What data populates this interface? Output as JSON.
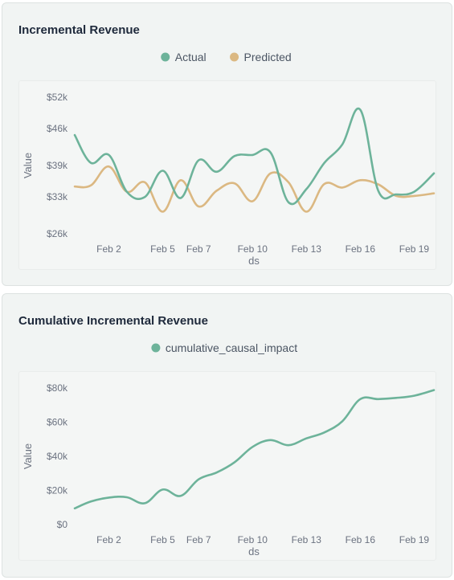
{
  "colors": {
    "actual": "#6db39a",
    "predicted": "#dbb882",
    "axis_text": "#6b7280",
    "card_bg": "#f1f4f3"
  },
  "charts": [
    {
      "card_title": "Incremental Revenue",
      "chart_data": {
        "type": "line",
        "xlabel": "ds",
        "ylabel": "Value",
        "x_ticks": [
          "Feb 2",
          "Feb 5",
          "Feb 7",
          "Feb 10",
          "Feb 13",
          "Feb 16",
          "Feb 19"
        ],
        "x_tick_days": [
          2,
          5,
          7,
          10,
          13,
          16,
          19
        ],
        "y_ticks": [
          "$26k",
          "$33k",
          "$39k",
          "$46k",
          "$52k"
        ],
        "y_tick_values": [
          26000,
          33000,
          39000,
          46000,
          52000
        ],
        "ylim": [
          24500,
          52000
        ],
        "xlim": [
          0.1,
          20.1
        ],
        "legend_position": "top-center",
        "series": [
          {
            "name": "Actual",
            "color": "#6db39a",
            "x": [
              0.1,
              1.0,
              2.0,
              3.0,
              4.0,
              5.0,
              6.0,
              7.0,
              8.0,
              9.0,
              10.0,
              11.0,
              12.0,
              13.0,
              14.0,
              15.0,
              16.0,
              17.0,
              18.0,
              19.0,
              20.1
            ],
            "y": [
              44800,
              39500,
              41000,
              34000,
              33000,
              38000,
              32800,
              40000,
              37800,
              40800,
              41000,
              41500,
              32000,
              34500,
              39500,
              43000,
              49600,
              34200,
              33500,
              34000,
              37500
            ]
          },
          {
            "name": "Predicted",
            "color": "#dbb882",
            "x": [
              0.1,
              1.0,
              2.0,
              3.0,
              4.0,
              5.0,
              6.0,
              7.0,
              8.0,
              9.0,
              10.0,
              11.0,
              12.0,
              13.0,
              14.0,
              15.0,
              16.0,
              17.0,
              18.0,
              19.0,
              20.1
            ],
            "y": [
              35000,
              35200,
              38800,
              34000,
              35800,
              30200,
              36200,
              31200,
              34200,
              35600,
              32200,
              37500,
              35800,
              30200,
              35500,
              34800,
              36200,
              35400,
              33200,
              33200,
              33700
            ]
          }
        ]
      }
    },
    {
      "card_title": "Cumulative Incremental Revenue",
      "chart_data": {
        "type": "line",
        "xlabel": "ds",
        "ylabel": "Value",
        "x_ticks": [
          "Feb 2",
          "Feb 5",
          "Feb 7",
          "Feb 10",
          "Feb 13",
          "Feb 16",
          "Feb 19"
        ],
        "x_tick_days": [
          2,
          5,
          7,
          10,
          13,
          16,
          19
        ],
        "y_ticks": [
          "$0",
          "$20k",
          "$40k",
          "$60k",
          "$80k"
        ],
        "y_tick_values": [
          0,
          20000,
          40000,
          60000,
          80000
        ],
        "ylim": [
          0,
          80000
        ],
        "xlim": [
          0.1,
          20.1
        ],
        "legend_position": "top-center",
        "series": [
          {
            "name": "cumulative_causal_impact",
            "color": "#6db39a",
            "x": [
              0.1,
              1.0,
              2.0,
              3.0,
              4.0,
              5.0,
              6.0,
              7.0,
              8.0,
              9.0,
              10.0,
              11.0,
              12.0,
              13.0,
              14.0,
              15.0,
              16.0,
              17.0,
              18.0,
              19.0,
              20.1
            ],
            "y": [
              9500,
              13500,
              15800,
              16000,
              12500,
              20500,
              16800,
              26500,
              30500,
              36500,
              45500,
              49500,
              46500,
              50500,
              54000,
              60500,
              73500,
              73500,
              74200,
              75500,
              78800
            ]
          }
        ]
      }
    }
  ]
}
